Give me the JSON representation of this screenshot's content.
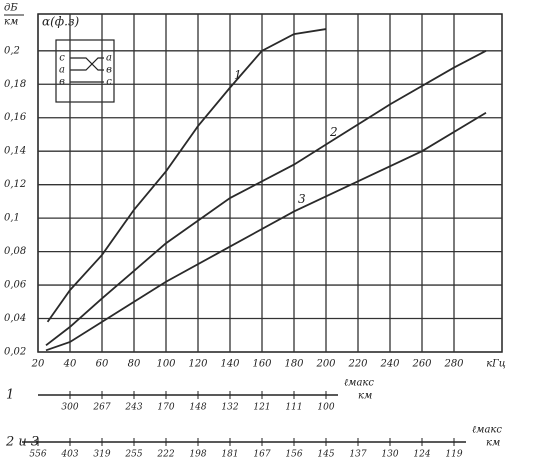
{
  "chart_data": {
    "type": "line",
    "y_unit_top": "дБ",
    "y_unit_bottom": "км",
    "y_label": "α(ф.з)",
    "x_unit": "кГц",
    "xlim": [
      20,
      310
    ],
    "ylim": [
      0.02,
      0.222
    ],
    "xticks": [
      20,
      40,
      60,
      80,
      100,
      120,
      140,
      160,
      180,
      200,
      220,
      240,
      260,
      280
    ],
    "yticks": [
      {
        "value": 0.02,
        "label": "0,02"
      },
      {
        "value": 0.04,
        "label": "0,04"
      },
      {
        "value": 0.06,
        "label": "0,06"
      },
      {
        "value": 0.08,
        "label": "0,08"
      },
      {
        "value": 0.1,
        "label": "0,1"
      },
      {
        "value": 0.12,
        "label": "0,12"
      },
      {
        "value": 0.14,
        "label": "0,14"
      },
      {
        "value": 0.16,
        "label": "0,16"
      },
      {
        "value": 0.18,
        "label": "0,18"
      },
      {
        "value": 0.2,
        "label": "0,2"
      }
    ],
    "grid": true,
    "series": [
      {
        "name": "1",
        "color": "#2a2a2a",
        "x": [
          26,
          40,
          60,
          80,
          100,
          120,
          140,
          160,
          180,
          200
        ],
        "values": [
          0.038,
          0.057,
          0.078,
          0.105,
          0.128,
          0.155,
          0.178,
          0.2,
          0.21,
          0.213
        ]
      },
      {
        "name": "2",
        "color": "#2a2a2a",
        "x": [
          25,
          40,
          60,
          100,
          140,
          180,
          200,
          240,
          280,
          300
        ],
        "values": [
          0.024,
          0.035,
          0.052,
          0.085,
          0.112,
          0.132,
          0.144,
          0.168,
          0.19,
          0.2
        ]
      },
      {
        "name": "3",
        "color": "#2a2a2a",
        "x": [
          25,
          40,
          60,
          100,
          140,
          180,
          220,
          260,
          300
        ],
        "values": [
          0.021,
          0.026,
          0.038,
          0.062,
          0.083,
          0.104,
          0.122,
          0.14,
          0.163
        ]
      }
    ],
    "inset": {
      "left": [
        "с",
        "а",
        "в"
      ],
      "right": [
        "а",
        "в",
        "с"
      ]
    },
    "scales": [
      {
        "name": "1",
        "label": "ℓмакс",
        "unit": "км",
        "x": [
          40,
          60,
          80,
          100,
          120,
          140,
          160,
          180,
          200
        ],
        "values": [
          300,
          267,
          243,
          170,
          148,
          132,
          121,
          111,
          100
        ]
      },
      {
        "name": "2 и 3",
        "label": "ℓмакс",
        "unit": "км",
        "x": [
          20,
          40,
          60,
          80,
          100,
          120,
          140,
          160,
          180,
          200,
          220,
          240,
          260,
          280
        ],
        "values": [
          556,
          403,
          319,
          255,
          222,
          198,
          181,
          167,
          156,
          145,
          137,
          130,
          124,
          119
        ]
      }
    ]
  }
}
